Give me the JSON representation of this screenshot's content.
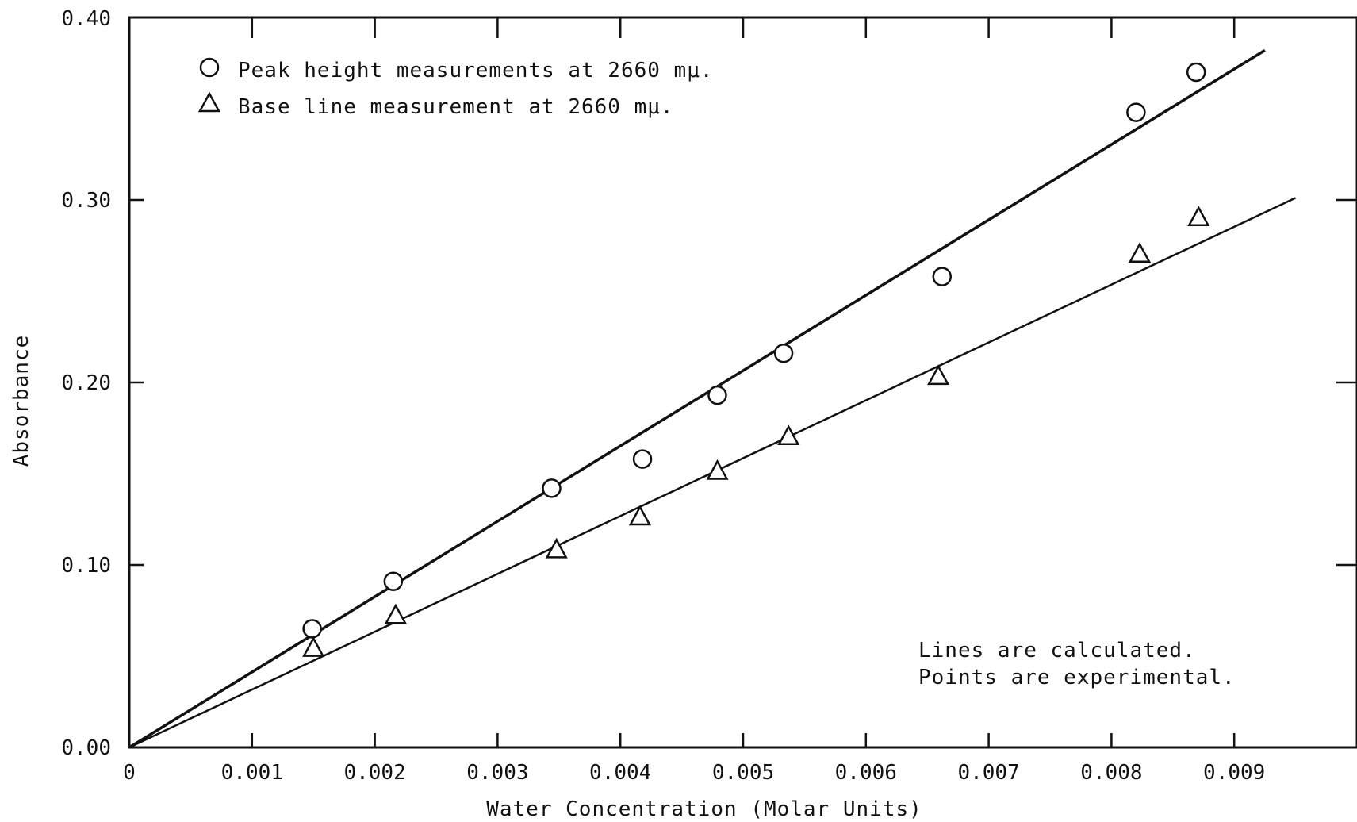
{
  "chart_data": {
    "type": "scatter",
    "title": "",
    "xlabel": "Water Concentration (Molar Units)",
    "ylabel": "Absorbance",
    "xlim": [
      0,
      0.01
    ],
    "ylim": [
      0,
      0.4
    ],
    "x_ticks": [
      0,
      0.001,
      0.002,
      0.003,
      0.004,
      0.005,
      0.006,
      0.007,
      0.008,
      0.009
    ],
    "x_tick_labels": [
      "0",
      "0.001",
      "0.002",
      "0.003",
      "0.004",
      "0.005",
      "0.006",
      "0.007",
      "0.008",
      "0.009"
    ],
    "y_ticks": [
      0,
      0.1,
      0.2,
      0.3,
      0.4
    ],
    "y_tick_labels": [
      "0.00",
      "0.10",
      "0.20",
      "0.30",
      "0.40"
    ],
    "grid": false,
    "legend_position": "top-left",
    "series": [
      {
        "name": "Peak height measurements at 2660 mμ.",
        "marker": "circle",
        "x": [
          0.00149,
          0.00215,
          0.00344,
          0.00418,
          0.00479,
          0.00533,
          0.00662,
          0.0082,
          0.00869
        ],
        "y": [
          0.065,
          0.091,
          0.142,
          0.158,
          0.193,
          0.216,
          0.258,
          0.348,
          0.37
        ],
        "fit_line": {
          "slope": 41.3,
          "intercept": 0,
          "x_end": 0.00925
        }
      },
      {
        "name": "Base line measurement at 2660 mμ.",
        "marker": "triangle",
        "x": [
          0.0015,
          0.00217,
          0.00348,
          0.00416,
          0.00479,
          0.00537,
          0.00659,
          0.00823,
          0.00871
        ],
        "y": [
          0.054,
          0.072,
          0.108,
          0.126,
          0.151,
          0.17,
          0.203,
          0.27,
          0.29
        ],
        "fit_line": {
          "slope": 31.7,
          "intercept": 0,
          "x_end": 0.0095
        }
      }
    ],
    "annotations": [
      "Lines are calculated.",
      "Points are experimental."
    ]
  }
}
